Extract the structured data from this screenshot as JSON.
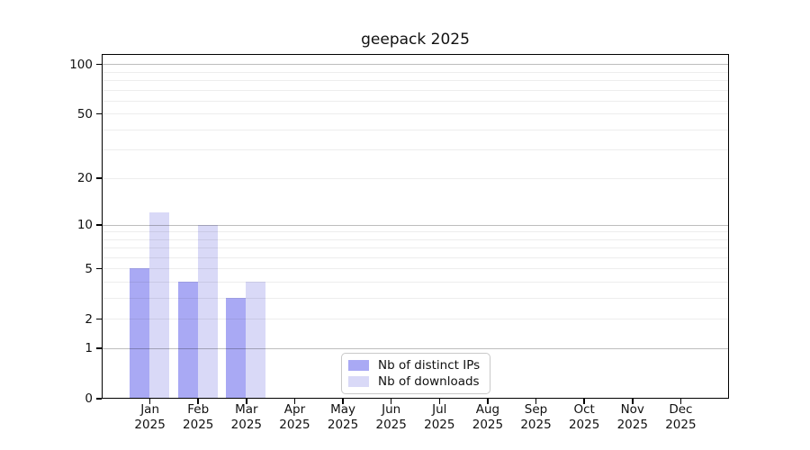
{
  "chart_data": {
    "type": "bar",
    "title": "geepack 2025",
    "categories": [
      "Jan",
      "Feb",
      "Mar",
      "Apr",
      "May",
      "Jun",
      "Jul",
      "Aug",
      "Sep",
      "Oct",
      "Nov",
      "Dec"
    ],
    "x_tick_year": "2025",
    "series": [
      {
        "name": "Nb of distinct IPs",
        "color": "#a9a9f4",
        "values": [
          5,
          4,
          3,
          0,
          0,
          0,
          0,
          0,
          0,
          0,
          0,
          0
        ]
      },
      {
        "name": "Nb of downloads",
        "color": "#d9d9f7",
        "values": [
          12,
          10,
          4,
          0,
          0,
          0,
          0,
          0,
          0,
          0,
          0,
          0
        ]
      }
    ],
    "y_axis": {
      "scale": "log1p",
      "ticks": [
        0,
        1,
        2,
        5,
        10,
        20,
        50,
        100
      ],
      "ylim": [
        0,
        116
      ],
      "major_gridlines": [
        1,
        10,
        100
      ],
      "minor_gridlines": [
        2,
        3,
        4,
        5,
        6,
        7,
        8,
        9,
        20,
        30,
        40,
        50,
        60,
        70,
        80,
        90
      ]
    },
    "xlabel": "",
    "ylabel": "",
    "legend_position": "bottom-center"
  },
  "colors": {
    "axis": "#000000",
    "minor_grid": "#ededed",
    "major_grid": "#bdbdbd",
    "background": "#ffffff"
  }
}
